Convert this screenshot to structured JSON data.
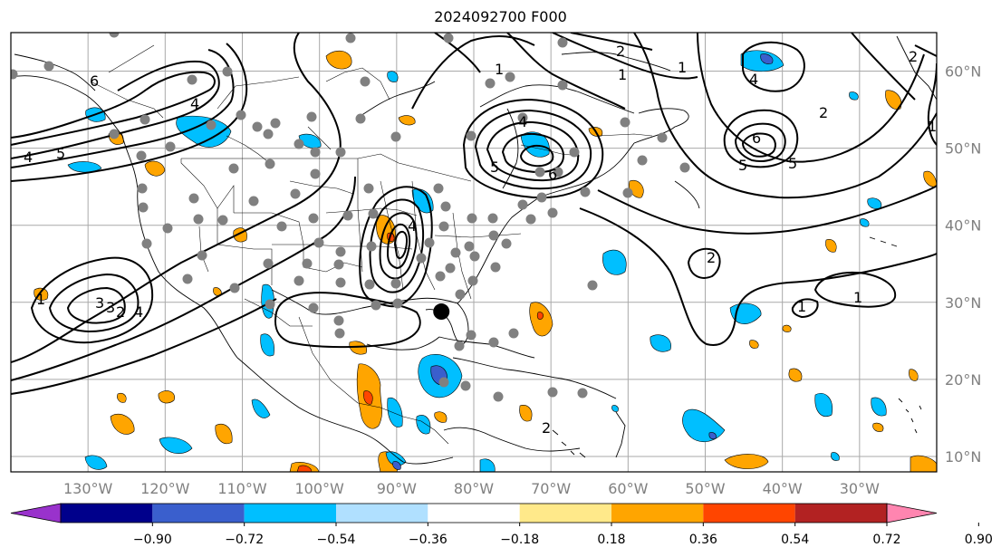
{
  "title": "2024092700 F000",
  "map": {
    "lon_range": [
      -140,
      -20
    ],
    "lat_range": [
      8,
      65
    ],
    "lat_labels": [
      "10°N",
      "20°N",
      "30°N",
      "40°N",
      "50°N",
      "60°N"
    ],
    "lat_values": [
      10,
      20,
      30,
      40,
      50,
      60
    ],
    "lon_labels": [
      "130°W",
      "120°W",
      "110°W",
      "100°W",
      "90°W",
      "80°W",
      "70°W",
      "60°W",
      "50°W",
      "40°W",
      "30°W"
    ],
    "lon_values": [
      -130,
      -120,
      -110,
      -100,
      -90,
      -80,
      -70,
      -60,
      -50,
      -40,
      -30
    ],
    "grid_color": "#a9a9a9",
    "station_color": "#808080",
    "storm_marker": {
      "lon": -84.2,
      "lat": 28.8,
      "color": "#000000"
    }
  },
  "contour_labels": [
    "6",
    "4",
    "5",
    "4",
    "3",
    "2",
    "1",
    "3",
    "4",
    "1",
    "4",
    "1",
    "5",
    "6",
    "2",
    "1",
    "4",
    "5",
    "6",
    "1",
    "5",
    "2",
    "2",
    "2",
    "1",
    "1",
    "4",
    "2"
  ],
  "colorbar": {
    "ticks": [
      "−0.90",
      "−0.72",
      "−0.54",
      "−0.36",
      "−0.18",
      "0.18",
      "0.36",
      "0.54",
      "0.72",
      "0.90"
    ],
    "colors": [
      "#9932cc",
      "#00008b",
      "#3a5fcd",
      "#00bfff",
      "#b0e0ff",
      "#ffffff",
      "#ffe98a",
      "#ffa500",
      "#ff4500",
      "#b22222",
      "#ff85b0"
    ]
  }
}
